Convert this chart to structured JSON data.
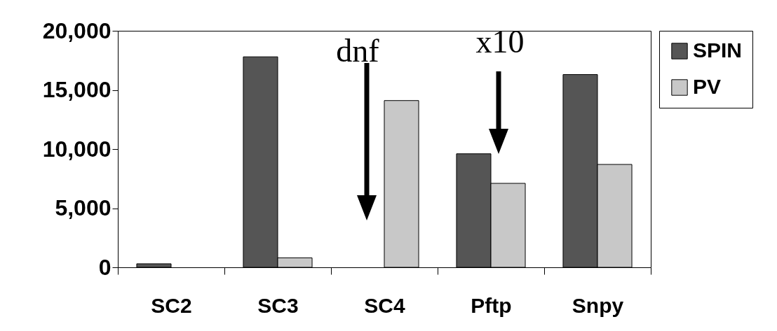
{
  "chart_data": {
    "type": "bar",
    "categories": [
      "SC2",
      "SC3",
      "SC4",
      "Pftp",
      "Snpy"
    ],
    "series": [
      {
        "name": "SPIN",
        "color": "#555555",
        "values": [
          300,
          17800,
          null,
          9600,
          16300
        ]
      },
      {
        "name": "PV",
        "color": "#c8c8c8",
        "values": [
          null,
          800,
          14100,
          7100,
          8700
        ]
      }
    ],
    "ylim": [
      0,
      20000
    ],
    "yticks": [
      0,
      {
        "value": 5000,
        "label": "5,000"
      },
      {
        "value": 10000,
        "label": "10,000"
      },
      {
        "value": 15000,
        "label": "15,000"
      },
      {
        "value": 20000,
        "label": "20,000"
      }
    ],
    "legend": "right",
    "annotations": [
      "dnf",
      "x10"
    ]
  }
}
